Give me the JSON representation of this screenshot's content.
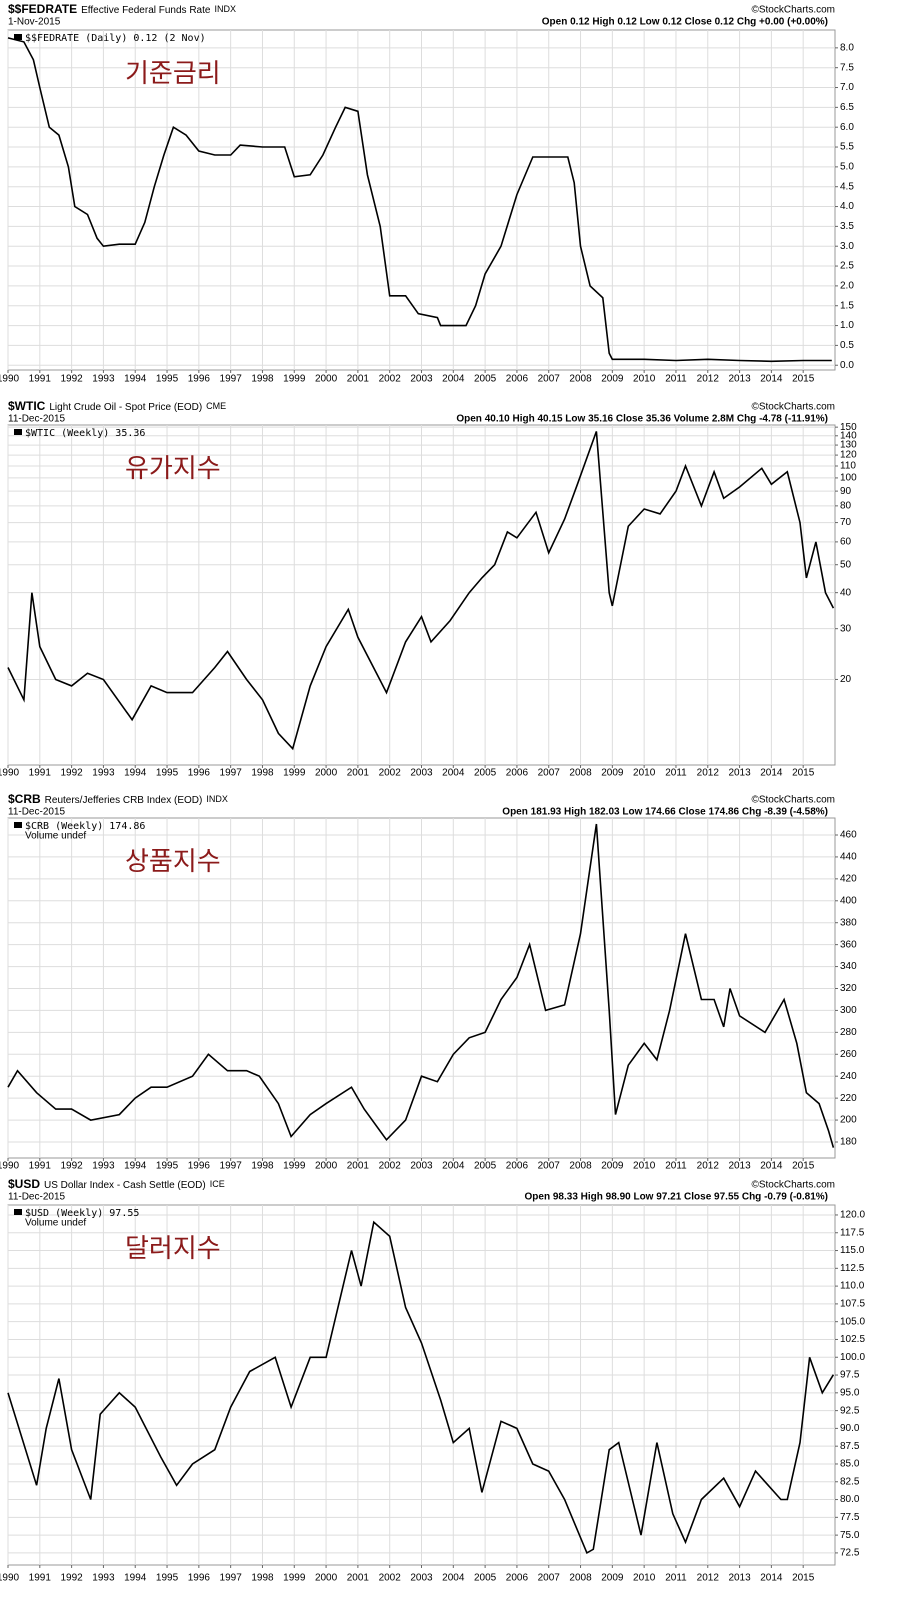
{
  "chart_data": [
    {
      "type": "line",
      "title": "$$FEDRATE",
      "subtitle": "Effective Federal Funds Rate",
      "exchange": "INDX",
      "date": "1-Nov-2015",
      "quote": "Open 0.12  High 0.12  Low 0.12  Close 0.12  Chg +0.00 (+0.00%)",
      "source": "©StockCharts.com",
      "annotation": "기준금리",
      "log": false,
      "grid": true,
      "xlim": [
        1990,
        2016
      ],
      "xticks": [
        1990,
        1991,
        1992,
        1993,
        1994,
        1995,
        1996,
        1997,
        1998,
        1999,
        2000,
        2001,
        2002,
        2003,
        2004,
        2005,
        2006,
        2007,
        2008,
        2009,
        2010,
        2011,
        2012,
        2013,
        2014,
        2015
      ],
      "ylim": [
        -0.12,
        8.45
      ],
      "yticks": [
        {
          "value": 0,
          "label": "0.0"
        },
        {
          "value": 0.5,
          "label": "0.5"
        },
        {
          "value": 1,
          "label": "1.0"
        },
        {
          "value": 1.5,
          "label": "1.5"
        },
        {
          "value": 2,
          "label": "2.0"
        },
        {
          "value": 2.5,
          "label": "2.5"
        },
        {
          "value": 3,
          "label": "3.0"
        },
        {
          "value": 3.5,
          "label": "3.5"
        },
        {
          "value": 4,
          "label": "4.0"
        },
        {
          "value": 4.5,
          "label": "4.5"
        },
        {
          "value": 5,
          "label": "5.0"
        },
        {
          "value": 5.5,
          "label": "5.5"
        },
        {
          "value": 6,
          "label": "6.0"
        },
        {
          "value": 6.5,
          "label": "6.5"
        },
        {
          "value": 7,
          "label": "7.0"
        },
        {
          "value": 7.5,
          "label": "7.5"
        },
        {
          "value": 8,
          "label": "8.0"
        }
      ],
      "x": [
        1990.0,
        1990.5,
        1990.8,
        1991.0,
        1991.3,
        1991.6,
        1991.9,
        1992.1,
        1992.5,
        1992.8,
        1993.0,
        1993.5,
        1994.0,
        1994.3,
        1994.6,
        1994.9,
        1995.2,
        1995.6,
        1996.0,
        1996.5,
        1997.0,
        1997.3,
        1998.0,
        1998.7,
        1998.9,
        1999.0,
        1999.5,
        1999.9,
        2000.3,
        2000.6,
        2001.0,
        2001.3,
        2001.7,
        2002.0,
        2002.5,
        2002.9,
        2003.5,
        2003.6,
        2004.4,
        2004.7,
        2005.0,
        2005.5,
        2006.0,
        2006.5,
        2007.6,
        2007.8,
        2008.0,
        2008.3,
        2008.7,
        2008.9,
        2009.0,
        2010.0,
        2011.0,
        2012.0,
        2013.0,
        2014.0,
        2015.0,
        2015.9
      ],
      "series": [
        {
          "name": "$$FEDRATE (Daily) 0.12 (2 Nov)",
          "color": "#000000",
          "values": [
            8.25,
            8.15,
            7.7,
            7.0,
            6.0,
            5.8,
            5.0,
            4.0,
            3.8,
            3.2,
            3.0,
            3.05,
            3.05,
            3.6,
            4.5,
            5.3,
            6.0,
            5.8,
            5.4,
            5.3,
            5.3,
            5.55,
            5.5,
            5.5,
            5.0,
            4.75,
            4.8,
            5.3,
            6.0,
            6.5,
            6.4,
            4.8,
            3.5,
            1.75,
            1.75,
            1.3,
            1.2,
            1.0,
            1.0,
            1.5,
            2.3,
            3.0,
            4.3,
            5.25,
            5.25,
            4.6,
            3.0,
            2.0,
            1.7,
            0.3,
            0.15,
            0.15,
            0.12,
            0.15,
            0.12,
            0.1,
            0.12,
            0.12
          ]
        }
      ]
    },
    {
      "type": "line",
      "title": "$WTIC",
      "subtitle": "Light Crude Oil - Spot Price (EOD)",
      "exchange": "CME",
      "date": "11-Dec-2015",
      "quote": "Open 40.10  High 40.15  Low 35.16  Close 35.36  Volume 2.8M  Chg -4.78 (-11.91%)",
      "source": "©StockCharts.com",
      "annotation": "유가지수",
      "log": true,
      "grid": true,
      "xlim": [
        1990,
        2016
      ],
      "xticks": [
        1990,
        1991,
        1992,
        1993,
        1994,
        1995,
        1996,
        1997,
        1998,
        1999,
        2000,
        2001,
        2002,
        2003,
        2004,
        2005,
        2006,
        2007,
        2008,
        2009,
        2010,
        2011,
        2012,
        2013,
        2014,
        2015
      ],
      "ylim": [
        10.1,
        152.6
      ],
      "yticks": [
        20,
        30,
        40,
        50,
        60,
        70,
        80,
        90,
        100,
        110,
        120,
        130,
        140,
        150
      ],
      "x": [
        1990.0,
        1990.5,
        1990.75,
        1991.0,
        1991.5,
        1992.0,
        1992.5,
        1993.0,
        1993.9,
        1994.5,
        1995.0,
        1995.8,
        1996.5,
        1996.9,
        1997.5,
        1998.0,
        1998.5,
        1998.95,
        1999.5,
        2000.0,
        2000.7,
        2001.0,
        2001.9,
        2002.5,
        2003.0,
        2003.3,
        2003.9,
        2004.5,
        2004.9,
        2005.3,
        2005.7,
        2006.0,
        2006.6,
        2007.0,
        2007.5,
        2007.9,
        2008.5,
        2008.9,
        2009.0,
        2009.5,
        2010.0,
        2010.5,
        2011.0,
        2011.3,
        2011.8,
        2012.2,
        2012.5,
        2013.0,
        2013.7,
        2014.0,
        2014.5,
        2014.9,
        2015.1,
        2015.4,
        2015.7,
        2015.95
      ],
      "series": [
        {
          "name": "$WTIC (Weekly) 35.36",
          "color": "#000000",
          "values": [
            22,
            17,
            40,
            26,
            20,
            19,
            21,
            20,
            14.5,
            19,
            18,
            18,
            22,
            25,
            20,
            17,
            13,
            11.5,
            19,
            26,
            35,
            28,
            18,
            27,
            33,
            27,
            32,
            40,
            45,
            50,
            65,
            62,
            76,
            55,
            72,
            95,
            145,
            40,
            36,
            68,
            78,
            75,
            90,
            110,
            80,
            105,
            85,
            93,
            108,
            95,
            105,
            70,
            45,
            60,
            40,
            35.36
          ]
        }
      ]
    },
    {
      "type": "line",
      "title": "$CRB",
      "subtitle": "Reuters/Jefferies CRB Index (EOD)",
      "exchange": "INDX",
      "date": "11-Dec-2015",
      "quote": "Open 181.93  High 182.03  Low 174.66  Close 174.86  Chg -8.39 (-4.58%)",
      "source": "©StockCharts.com",
      "annotation": "상품지수",
      "legend_note": "Volume undef",
      "log": false,
      "grid": true,
      "xlim": [
        1990,
        2016
      ],
      "xticks": [
        1990,
        1991,
        1992,
        1993,
        1994,
        1995,
        1996,
        1997,
        1998,
        1999,
        2000,
        2001,
        2002,
        2003,
        2004,
        2005,
        2006,
        2007,
        2008,
        2009,
        2010,
        2011,
        2012,
        2013,
        2014,
        2015
      ],
      "ylim": [
        165.4,
        475.5
      ],
      "yticks": [
        180,
        200,
        220,
        240,
        260,
        280,
        300,
        320,
        340,
        360,
        380,
        400,
        420,
        440,
        460
      ],
      "x": [
        1990.0,
        1990.3,
        1990.9,
        1991.5,
        1992.0,
        1992.6,
        1993.5,
        1994.0,
        1994.5,
        1995.0,
        1995.8,
        1996.3,
        1996.9,
        1997.5,
        1997.9,
        1998.5,
        1998.9,
        1999.5,
        2000.0,
        2000.8,
        2001.2,
        2001.9,
        2002.5,
        2003.0,
        2003.5,
        2004.0,
        2004.5,
        2005.0,
        2005.5,
        2006.0,
        2006.4,
        2006.9,
        2007.5,
        2008.0,
        2008.5,
        2008.9,
        2009.1,
        2009.5,
        2010.0,
        2010.4,
        2010.8,
        2011.3,
        2011.8,
        2012.2,
        2012.5,
        2012.7,
        2013.0,
        2013.8,
        2014.4,
        2014.8,
        2015.1,
        2015.5,
        2015.8,
        2015.95
      ],
      "series": [
        {
          "name": "$CRB (Weekly) 174.86",
          "color": "#000000",
          "values": [
            230,
            245,
            225,
            210,
            210,
            200,
            205,
            220,
            230,
            230,
            240,
            260,
            245,
            245,
            240,
            215,
            185,
            205,
            215,
            230,
            210,
            182,
            200,
            240,
            235,
            260,
            275,
            280,
            310,
            330,
            360,
            300,
            305,
            370,
            470,
            300,
            205,
            250,
            270,
            255,
            300,
            370,
            310,
            310,
            285,
            320,
            295,
            280,
            310,
            270,
            225,
            215,
            190,
            174.86
          ]
        }
      ]
    },
    {
      "type": "line",
      "title": "$USD",
      "subtitle": "US Dollar Index - Cash Settle (EOD)",
      "exchange": "ICE",
      "date": "11-Dec-2015",
      "quote": "Open 98.33  High 98.90  Low 97.21  Close 97.55  Chg -0.79 (-0.81%)",
      "source": "©StockCharts.com",
      "annotation": "달러지수",
      "legend_note": "Volume undef",
      "log": false,
      "grid": true,
      "xlim": [
        1990,
        2016
      ],
      "xticks": [
        1990,
        1991,
        1992,
        1993,
        1994,
        1995,
        1996,
        1997,
        1998,
        1999,
        2000,
        2001,
        2002,
        2003,
        2004,
        2005,
        2006,
        2007,
        2008,
        2009,
        2010,
        2011,
        2012,
        2013,
        2014,
        2015
      ],
      "ylim": [
        70.8,
        121.4
      ],
      "yticks": [
        {
          "value": 72.5,
          "label": "72.5"
        },
        {
          "value": 75,
          "label": "75.0"
        },
        {
          "value": 77.5,
          "label": "77.5"
        },
        {
          "value": 80,
          "label": "80.0"
        },
        {
          "value": 82.5,
          "label": "82.5"
        },
        {
          "value": 85,
          "label": "85.0"
        },
        {
          "value": 87.5,
          "label": "87.5"
        },
        {
          "value": 90,
          "label": "90.0"
        },
        {
          "value": 92.5,
          "label": "92.5"
        },
        {
          "value": 95,
          "label": "95.0"
        },
        {
          "value": 97.5,
          "label": "97.5"
        },
        {
          "value": 100,
          "label": "100.0"
        },
        {
          "value": 102.5,
          "label": "102.5"
        },
        {
          "value": 105,
          "label": "105.0"
        },
        {
          "value": 107.5,
          "label": "107.5"
        },
        {
          "value": 110,
          "label": "110.0"
        },
        {
          "value": 112.5,
          "label": "112.5"
        },
        {
          "value": 115,
          "label": "115.0"
        },
        {
          "value": 117.5,
          "label": "117.5"
        },
        {
          "value": 120,
          "label": "120.0"
        }
      ],
      "x": [
        1990.0,
        1990.9,
        1991.2,
        1991.6,
        1992.0,
        1992.6,
        1992.9,
        1993.5,
        1994.0,
        1994.8,
        1995.3,
        1995.8,
        1996.5,
        1997.0,
        1997.6,
        1998.4,
        1998.9,
        1999.5,
        2000.0,
        2000.8,
        2001.1,
        2001.5,
        2002.0,
        2002.5,
        2003.0,
        2003.6,
        2004.0,
        2004.5,
        2004.9,
        2005.5,
        2006.0,
        2006.5,
        2007.0,
        2007.5,
        2008.2,
        2008.4,
        2008.9,
        2009.2,
        2009.9,
        2010.4,
        2010.9,
        2011.3,
        2011.8,
        2012.5,
        2013.0,
        2013.5,
        2014.3,
        2014.5,
        2014.9,
        2015.2,
        2015.6,
        2015.95
      ],
      "series": [
        {
          "name": "$USD (Weekly) 97.55",
          "color": "#000000",
          "values": [
            95,
            82,
            90,
            97,
            87,
            80,
            92,
            95,
            93,
            86,
            82,
            85,
            87,
            93,
            98,
            100,
            93,
            100,
            100,
            115,
            110,
            119,
            117,
            107,
            102,
            94,
            88,
            90,
            81,
            91,
            90,
            85,
            84,
            80,
            72.5,
            73,
            87,
            88,
            75,
            88,
            78,
            74,
            80,
            83,
            79,
            84,
            80,
            80,
            88,
            100,
            95,
            97.55
          ]
        }
      ]
    }
  ]
}
